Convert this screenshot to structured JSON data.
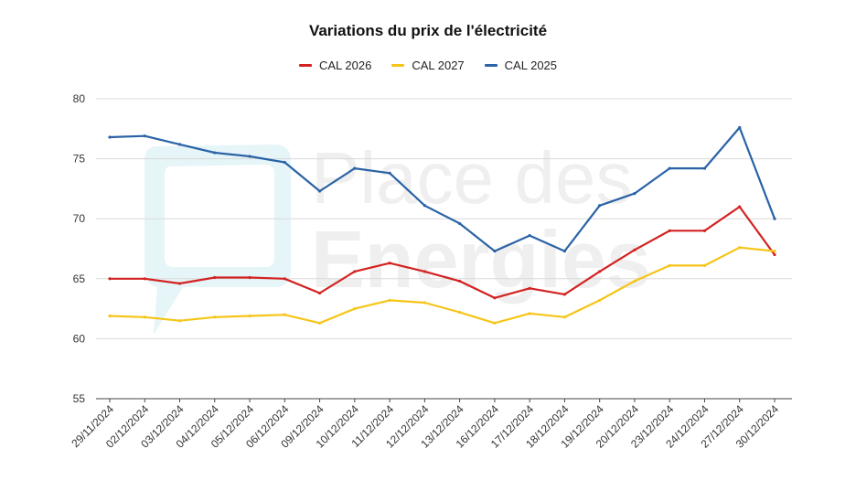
{
  "chart_data": {
    "type": "line",
    "title": "Variations du prix de l'électricité",
    "xlabel": "",
    "ylabel": "",
    "ylim": [
      55,
      80
    ],
    "yticks": [
      55,
      60,
      65,
      70,
      75,
      80
    ],
    "grid": true,
    "legend_position": "top-center",
    "categories": [
      "29/11/2024",
      "02/12/2024",
      "03/12/2024",
      "04/12/2024",
      "05/12/2024",
      "06/12/2024",
      "09/12/2024",
      "10/12/2024",
      "11/12/2024",
      "12/12/2024",
      "13/12/2024",
      "16/12/2024",
      "17/12/2024",
      "18/12/2024",
      "19/12/2024",
      "20/12/2024",
      "23/12/2024",
      "24/12/2024",
      "27/12/2024",
      "30/12/2024"
    ],
    "series": [
      {
        "name": "CAL 2026",
        "color": "#d32222",
        "values": [
          65.0,
          65.0,
          64.6,
          65.1,
          65.1,
          65.0,
          63.8,
          65.6,
          66.3,
          65.6,
          64.8,
          63.4,
          64.2,
          63.7,
          65.6,
          67.4,
          69.0,
          69.0,
          71.0,
          67.0
        ]
      },
      {
        "name": "CAL 2027",
        "color": "#f5c518",
        "values": [
          61.9,
          61.8,
          61.5,
          61.8,
          61.9,
          62.0,
          61.3,
          62.5,
          63.2,
          63.0,
          62.2,
          61.3,
          62.1,
          61.8,
          63.2,
          64.8,
          66.1,
          66.1,
          67.6,
          67.3
        ]
      },
      {
        "name": "CAL 2025",
        "color": "#2a63a6",
        "values": [
          76.8,
          76.9,
          76.2,
          75.5,
          75.2,
          74.7,
          72.3,
          74.2,
          73.8,
          71.1,
          69.6,
          67.3,
          68.6,
          67.3,
          71.1,
          72.1,
          74.2,
          74.2,
          77.6,
          70.0
        ]
      }
    ]
  },
  "watermark": {
    "line1": "Place des",
    "line2": "Energies"
  }
}
